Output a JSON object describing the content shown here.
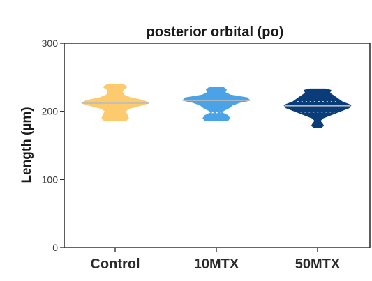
{
  "chart_data": {
    "type": "violin",
    "title": "posterior orbital (po)",
    "xlabel": "",
    "ylabel": "Length (µm)",
    "ylim": [
      0,
      300
    ],
    "yticks": [
      "0",
      "100",
      "200",
      "300"
    ],
    "categories": [
      "Control",
      "10MTX",
      "50MTX"
    ],
    "colors": [
      "#FDCB6E",
      "#4AA3E6",
      "#0B3C7A"
    ],
    "median_line_color": "#BBBBBB",
    "series": [
      {
        "category": "Control",
        "median": 212,
        "quartiles": [],
        "profile": [
          [
            186,
            0.32
          ],
          [
            190,
            0.4
          ],
          [
            195,
            0.36
          ],
          [
            200,
            0.3
          ],
          [
            204,
            0.4
          ],
          [
            208,
            0.72
          ],
          [
            212,
            1.0
          ],
          [
            216,
            0.86
          ],
          [
            220,
            0.46
          ],
          [
            224,
            0.26
          ],
          [
            228,
            0.22
          ],
          [
            232,
            0.24
          ],
          [
            235,
            0.34
          ],
          [
            238,
            0.3
          ],
          [
            240,
            0.2
          ]
        ]
      },
      {
        "category": "10MTX",
        "median": 216,
        "quartiles": [
          198
        ],
        "profile": [
          [
            186,
            0.34
          ],
          [
            190,
            0.4
          ],
          [
            194,
            0.34
          ],
          [
            198,
            0.16
          ],
          [
            201,
            0.22
          ],
          [
            205,
            0.38
          ],
          [
            209,
            0.48
          ],
          [
            213,
            0.7
          ],
          [
            216,
            1.0
          ],
          [
            220,
            0.92
          ],
          [
            224,
            0.42
          ],
          [
            228,
            0.26
          ],
          [
            232,
            0.3
          ],
          [
            235,
            0.22
          ]
        ]
      },
      {
        "category": "50MTX",
        "median": 208,
        "quartiles": [
          199,
          214
        ],
        "profile": [
          [
            176,
            0.1
          ],
          [
            179,
            0.18
          ],
          [
            182,
            0.14
          ],
          [
            186,
            0.08
          ],
          [
            190,
            0.16
          ],
          [
            195,
            0.42
          ],
          [
            200,
            0.68
          ],
          [
            205,
            0.94
          ],
          [
            209,
            1.0
          ],
          [
            214,
            0.74
          ],
          [
            219,
            0.6
          ],
          [
            223,
            0.48
          ],
          [
            227,
            0.36
          ],
          [
            231,
            0.4
          ],
          [
            233,
            0.24
          ]
        ]
      }
    ]
  }
}
